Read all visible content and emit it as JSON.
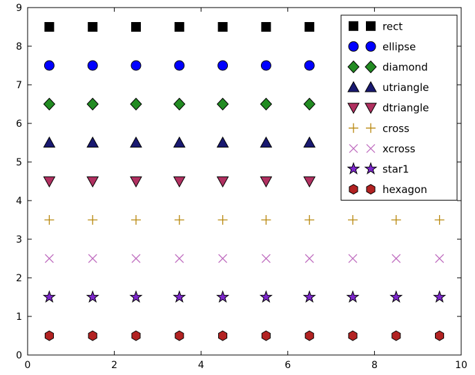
{
  "figure": {
    "background": "#ffffff",
    "axes_edge_color": "#000000"
  },
  "chart_data": {
    "type": "scatter",
    "title": "",
    "xlabel": "",
    "ylabel": "",
    "xlim": [
      0,
      10
    ],
    "ylim": [
      0,
      9
    ],
    "xticks": [
      0,
      2,
      4,
      6,
      8,
      10
    ],
    "xtick_labels": [
      "0",
      "2",
      "4",
      "6",
      "8",
      "10"
    ],
    "yticks": [
      0,
      1,
      2,
      3,
      4,
      5,
      6,
      7,
      8,
      9
    ],
    "ytick_labels": [
      "0",
      "1",
      "2",
      "3",
      "4",
      "5",
      "6",
      "7",
      "8",
      "9"
    ],
    "grid": false,
    "x": [
      0.5,
      1.5,
      2.5,
      3.5,
      4.5,
      5.5,
      6.5,
      7.5,
      8.5,
      9.5
    ],
    "series": [
      {
        "name": "rect",
        "marker": "square",
        "row_y": 8.5,
        "color": "#000000",
        "edge_color": "#000000"
      },
      {
        "name": "ellipse",
        "marker": "circle",
        "row_y": 7.5,
        "color": "#0000FF",
        "edge_color": "#000000"
      },
      {
        "name": "diamond",
        "marker": "diamond",
        "row_y": 6.5,
        "color": "#228B22",
        "edge_color": "#000000"
      },
      {
        "name": "utriangle",
        "marker": "triangle-up",
        "row_y": 5.5,
        "color": "#191970",
        "edge_color": "#000000"
      },
      {
        "name": "dtriangle",
        "marker": "triangle-down",
        "row_y": 4.5,
        "color": "#B03060",
        "edge_color": "#000000"
      },
      {
        "name": "cross",
        "marker": "plus",
        "row_y": 3.5,
        "color": "#B8860B",
        "edge_color": "#B8860B"
      },
      {
        "name": "xcross",
        "marker": "x",
        "row_y": 2.5,
        "color": "#C06FC0",
        "edge_color": "#C06FC0"
      },
      {
        "name": "star1",
        "marker": "star",
        "row_y": 1.5,
        "color": "#7D26CD",
        "edge_color": "#000000"
      },
      {
        "name": "hexagon",
        "marker": "hexagon",
        "row_y": 0.5,
        "color": "#B22222",
        "edge_color": "#000000"
      }
    ],
    "legend": {
      "position": "upper-right",
      "numpoints": 2,
      "entries": [
        "rect",
        "ellipse",
        "diamond",
        "utriangle",
        "dtriangle",
        "cross",
        "xcross",
        "star1",
        "hexagon"
      ]
    }
  }
}
